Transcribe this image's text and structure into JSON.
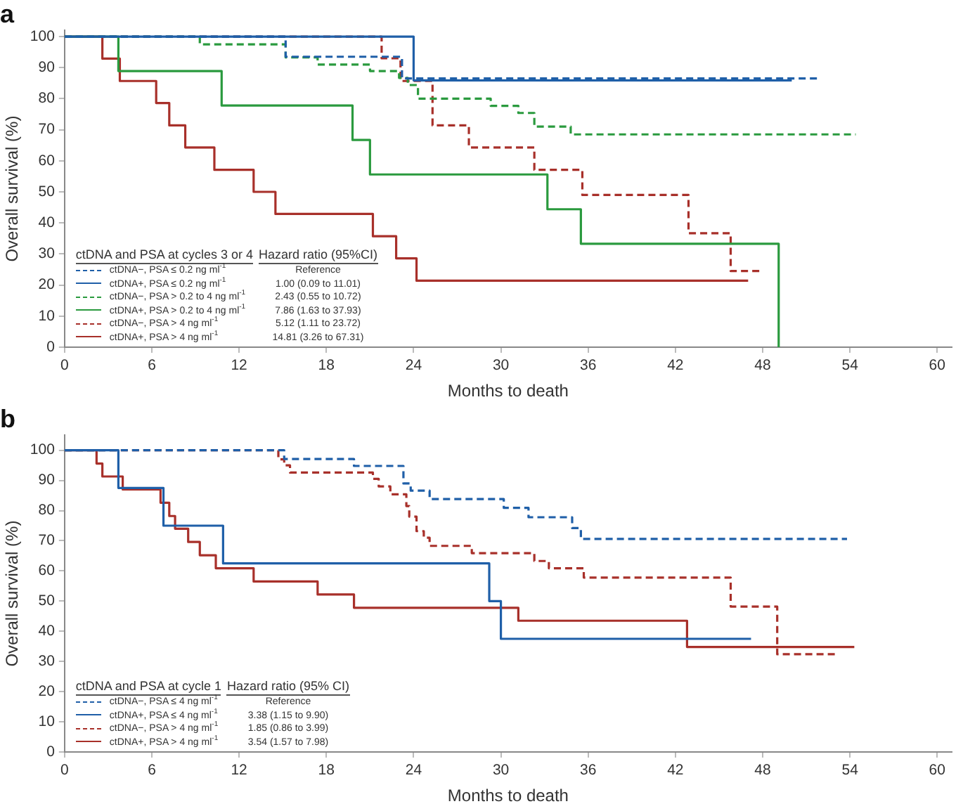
{
  "chart_data": [
    {
      "type": "step",
      "title": "a",
      "xlabel": "Months to death",
      "ylabel": "Overall survival (%)",
      "xlim": [
        0,
        61
      ],
      "ylim": [
        0,
        102
      ],
      "xticks": [
        0,
        6,
        12,
        18,
        24,
        30,
        36,
        42,
        48,
        54,
        60
      ],
      "yticks": [
        0,
        10,
        20,
        30,
        40,
        50,
        60,
        70,
        80,
        90,
        100
      ],
      "grid": false,
      "legend": "bottom left",
      "legend_title": "ctDNA and PSA at cycles 3 or 4",
      "annotations": [
        "Hazard ratio (95%CI)",
        "Reference",
        "1.00 (0.09 to 11.01)",
        "2.43 (0.55 to 10.72)",
        "7.86 (1.63 to 37.93)",
        "5.12 (1.11 to 23.72)",
        "14.81 (3.26 to 67.31)"
      ],
      "series": [
        {
          "name": "ctDNA−, PSA ≤ 0.2 ng ml$^{-1}$",
          "color": "#1f5fa8",
          "line_style": "dashed",
          "x": [
            0,
            15.2,
            23.2,
            51.9
          ],
          "values": [
            100,
            93.5,
            86.5,
            86.5
          ]
        },
        {
          "name": "ctDNA+, PSA ≤ 0.2 ng ml$^{-1}$",
          "color": "#1f5fa8",
          "line_style": "solid",
          "x": [
            0,
            24,
            50
          ],
          "values": [
            100,
            85.9,
            85.9
          ]
        },
        {
          "name": "ctDNA−, PSA > 0.2 to 4 ng ml$^{-1}$",
          "color": "#2a9a3e",
          "line_style": "dashed",
          "x": [
            0,
            9.3,
            15.2,
            17.4,
            21,
            23,
            23.6,
            24.3,
            29.3,
            31.2,
            32.3,
            34.8,
            54.4
          ],
          "values": [
            100,
            97.5,
            93.3,
            91,
            88.9,
            86.7,
            84.4,
            80,
            77.7,
            75.4,
            71,
            68.5,
            68.5
          ]
        },
        {
          "name": "ctDNA+, PSA > 0.2 to 4 ng ml$^{-1}$",
          "color": "#2a9a3e",
          "line_style": "solid",
          "x": [
            0,
            3.7,
            10.8,
            19.8,
            21,
            33.2,
            35.5,
            49.1
          ],
          "values": [
            100,
            88.9,
            77.8,
            66.7,
            55.6,
            44.4,
            33.3,
            0
          ]
        },
        {
          "name": "ctDNA−, PSA > 4 ng ml$^{-1}$",
          "color": "#a8302a",
          "line_style": "dashed",
          "x": [
            0,
            21.8,
            23.1,
            25.3,
            27.8,
            32.3,
            35.6,
            42.9,
            45.8,
            47.8
          ],
          "values": [
            100,
            93,
            85.7,
            71.4,
            64.3,
            57.1,
            49,
            36.7,
            24.5,
            24.5
          ]
        },
        {
          "name": "ctDNA+, PSA > 4 ng ml$^{-1}$",
          "color": "#a8302a",
          "line_style": "solid",
          "x": [
            0,
            2.6,
            3.8,
            6.3,
            7.2,
            8.3,
            10.3,
            13,
            14.5,
            21.2,
            22.8,
            24.2,
            47
          ],
          "values": [
            100,
            92.9,
            85.7,
            78.6,
            71.4,
            64.3,
            57.1,
            50,
            42.9,
            35.7,
            28.6,
            21.4,
            21.4
          ]
        }
      ]
    },
    {
      "type": "step",
      "title": "b",
      "xlabel": "Months to death",
      "ylabel": "Overall survival (%)",
      "xlim": [
        0,
        61
      ],
      "ylim": [
        0,
        105
      ],
      "xticks": [
        0,
        6,
        12,
        18,
        24,
        30,
        36,
        42,
        48,
        54,
        60
      ],
      "yticks": [
        0,
        10,
        20,
        30,
        40,
        50,
        60,
        70,
        80,
        90,
        100
      ],
      "grid": false,
      "legend": "bottom left",
      "legend_title": "ctDNA and PSA at cycle 1",
      "annotations": [
        "Hazard ratio (95% CI)",
        "Reference",
        "3.38 (1.15 to 9.90)",
        "1.85 (0.86 to 3.99)",
        "3.54 (1.57 to 7.98)"
      ],
      "series": [
        {
          "name": "ctDNA−, PSA ≤ 4 ng ml$^{-1}$",
          "color": "#1f5fa8",
          "line_style": "dashed",
          "x": [
            0,
            15.1,
            19.9,
            23.3,
            23.8,
            25.1,
            30.2,
            31.9,
            34.9,
            35.5,
            53.8
          ],
          "values": [
            100,
            97.1,
            94.8,
            89,
            86.6,
            83.8,
            80.9,
            77.8,
            74.2,
            70.6,
            70.6
          ]
        },
        {
          "name": "ctDNA+, PSA ≤ 4 ng ml$^{-1}$",
          "color": "#1f5fa8",
          "line_style": "solid",
          "x": [
            0,
            3.7,
            6.8,
            10.9,
            29.2,
            30,
            47.2
          ],
          "values": [
            100,
            87.5,
            75,
            62.5,
            50,
            37.5,
            37.5
          ]
        },
        {
          "name": "ctDNA−, PSA > 4 ng ml$^{-1}$",
          "color": "#a8302a",
          "line_style": "dashed",
          "x": [
            0,
            14.7,
            15.1,
            15.5,
            21.2,
            21.6,
            22.4,
            23.5,
            23.7,
            24.2,
            24.7,
            25.1,
            28,
            32.3,
            33.3,
            35.7,
            45.8,
            49,
            53
          ],
          "values": [
            100,
            97,
            95,
            92.6,
            90.5,
            88,
            85.4,
            81.5,
            78,
            73.2,
            71,
            68.3,
            65.9,
            63.3,
            60.9,
            57.8,
            48.2,
            32.4,
            32.4
          ]
        },
        {
          "name": "ctDNA+, PSA > 4 ng ml$^{-1}$",
          "color": "#a8302a",
          "line_style": "solid",
          "x": [
            0,
            2.2,
            2.6,
            4,
            6.6,
            7.2,
            7.6,
            8.5,
            9.3,
            10.4,
            13,
            17.4,
            19.9,
            31.2,
            42.8,
            54.3
          ],
          "values": [
            100,
            95.6,
            91.3,
            87,
            82.6,
            78.2,
            74,
            69.6,
            65.2,
            60.9,
            56.5,
            52.2,
            47.8,
            43.5,
            34.8,
            34.8
          ]
        }
      ]
    }
  ]
}
